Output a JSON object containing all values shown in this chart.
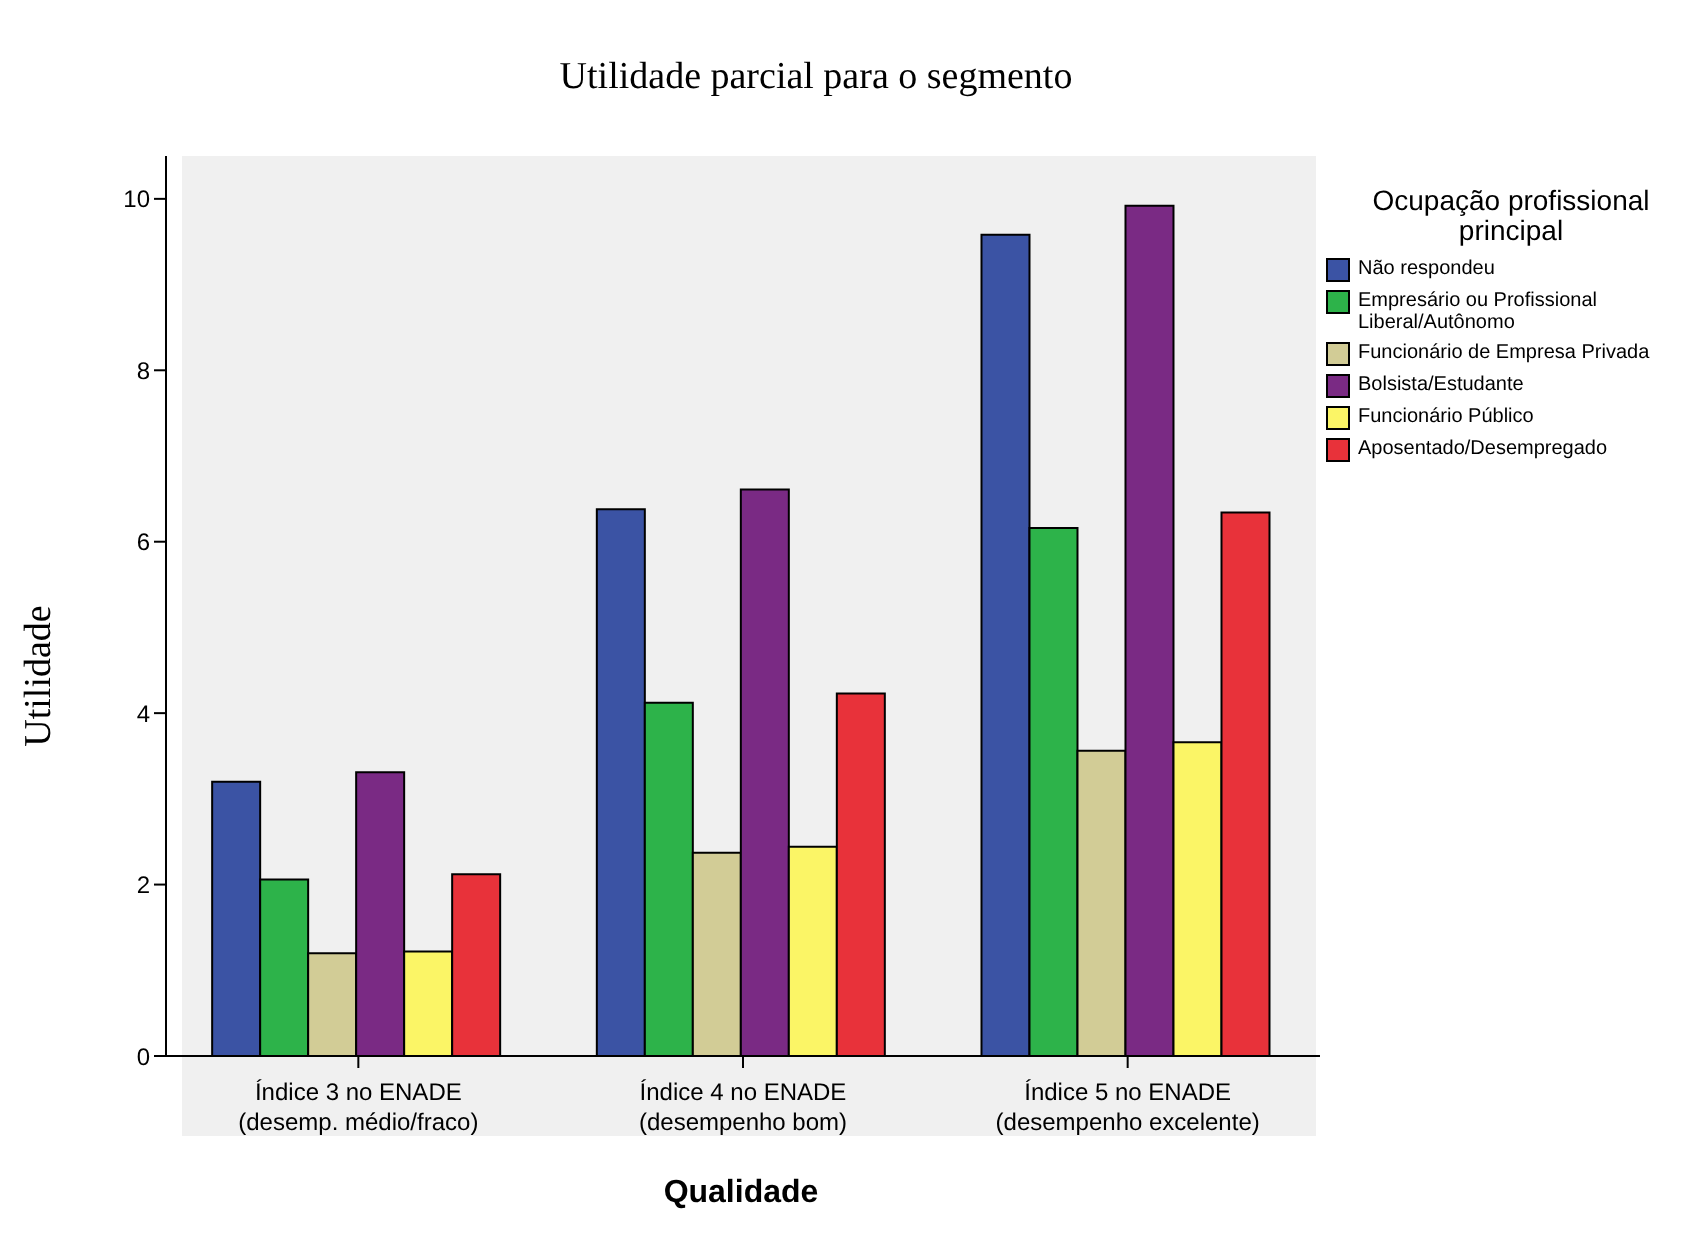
{
  "chart_data": {
    "type": "bar",
    "title": "Utilidade parcial para o segmento",
    "xlabel": "Qualidade",
    "ylabel": "Utilidade",
    "legend_title": "Ocupação profissional principal",
    "categories": [
      "Índice 3 no ENADE\n(desemp. médio/fraco)",
      "Índice 4 no ENADE\n(desempenho bom)",
      "Índice 5 no ENADE\n(desempenho excelente)"
    ],
    "series": [
      {
        "name": "Não respondeu",
        "color": "#3b53a4",
        "values": [
          3.2,
          6.38,
          9.58
        ]
      },
      {
        "name": "Empresário ou Profissional Liberal/Autônomo",
        "color": "#2db34a",
        "values": [
          2.06,
          4.12,
          6.16
        ]
      },
      {
        "name": "Funcionário de Empresa Privada",
        "color": "#d2cc96",
        "values": [
          1.2,
          2.37,
          3.56
        ]
      },
      {
        "name": "Bolsista/Estudante",
        "color": "#7a2a84",
        "values": [
          3.31,
          6.61,
          9.92
        ]
      },
      {
        "name": "Funcionário Público",
        "color": "#fbf566",
        "values": [
          1.22,
          2.44,
          3.66
        ]
      },
      {
        "name": "Aposentado/Desempregado",
        "color": "#e8323a",
        "values": [
          2.12,
          4.23,
          6.34
        ]
      }
    ],
    "ylim": [
      0,
      10.5
    ],
    "yticks": [
      0,
      2,
      4,
      6,
      8,
      10
    ],
    "grid": false,
    "legend": "right"
  }
}
